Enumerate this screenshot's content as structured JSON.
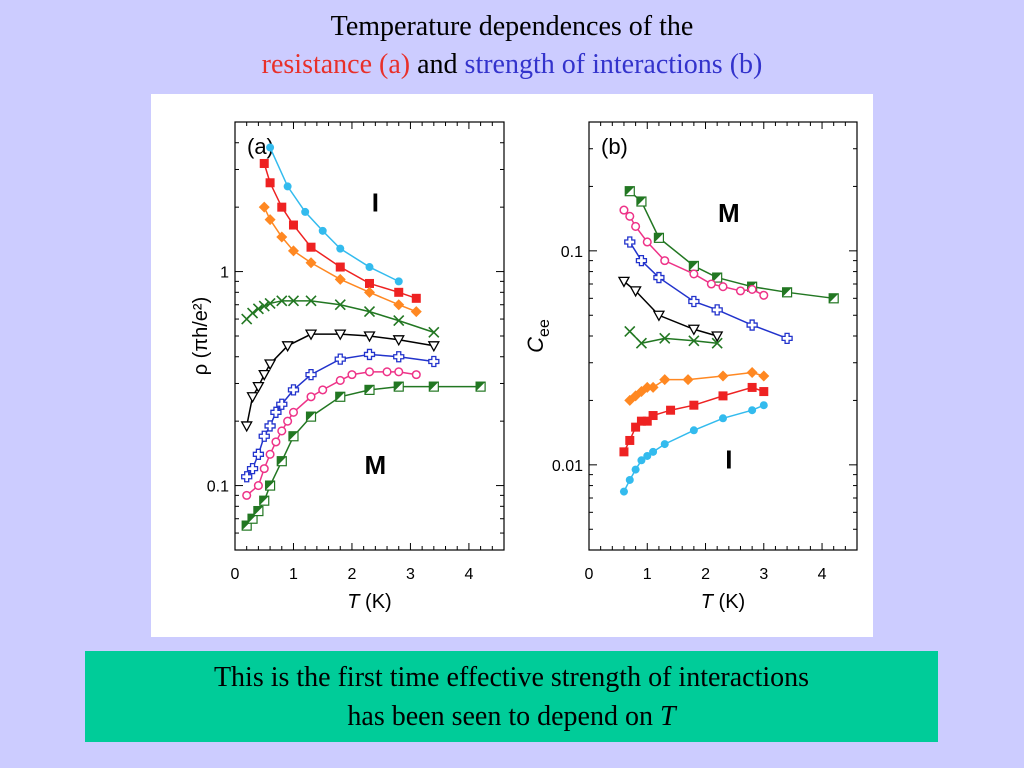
{
  "slide": {
    "title_line1": "Temperature dependences of the",
    "title_red": "resistance (a)",
    "title_and": " and ",
    "title_blue": "strength of interactions (b)",
    "note_line1": "This is the first time effective strength of interactions",
    "note_line2_prefix": "has been seen to depend on ",
    "note_line2_var": "T"
  },
  "chart_data": [
    {
      "type": "scatter",
      "panel_label": "(a)",
      "xlabel_var": "T",
      "xlabel_unit": " (K)",
      "ylabel": "ρ (πh/e²)",
      "ylim": [
        0.05,
        5
      ],
      "yscale": "log",
      "xlim": [
        0,
        4.6
      ],
      "xticks": [
        0,
        1,
        2,
        3,
        4
      ],
      "yticks": [
        0.1,
        1
      ],
      "ytick_labels": [
        "0.1",
        "1"
      ],
      "region_labels": [
        {
          "text": "I",
          "x": 2.4,
          "y": 2.1
        },
        {
          "text": "M",
          "x": 2.4,
          "y": 0.125
        }
      ],
      "series": [
        {
          "color": "#33bbee",
          "marker": "circle",
          "x": [
            0.6,
            0.9,
            1.2,
            1.5,
            1.8,
            2.3,
            2.8
          ],
          "y": [
            3.8,
            2.5,
            1.9,
            1.55,
            1.28,
            1.05,
            0.9
          ]
        },
        {
          "color": "#ee2222",
          "marker": "square",
          "x": [
            0.5,
            0.6,
            0.8,
            1.0,
            1.3,
            1.8,
            2.3,
            2.8,
            3.1
          ],
          "y": [
            3.2,
            2.6,
            2.0,
            1.65,
            1.3,
            1.05,
            0.88,
            0.8,
            0.75
          ]
        },
        {
          "color": "#ff8822",
          "marker": "diamond",
          "x": [
            0.5,
            0.6,
            0.8,
            1.0,
            1.3,
            1.8,
            2.3,
            2.8,
            3.1
          ],
          "y": [
            2.0,
            1.75,
            1.45,
            1.25,
            1.1,
            0.92,
            0.8,
            0.7,
            0.65
          ]
        },
        {
          "color": "#227722",
          "marker": "x",
          "x": [
            0.2,
            0.3,
            0.4,
            0.5,
            0.6,
            0.8,
            1.0,
            1.3,
            1.8,
            2.3,
            2.8,
            3.4
          ],
          "y": [
            0.6,
            0.64,
            0.67,
            0.69,
            0.71,
            0.73,
            0.73,
            0.73,
            0.7,
            0.65,
            0.59,
            0.52
          ]
        },
        {
          "color": "#000000",
          "marker": "triangle-down",
          "x": [
            0.2,
            0.3,
            0.4,
            0.5,
            0.6,
            0.9,
            1.3,
            1.8,
            2.3,
            2.8,
            3.4
          ],
          "y": [
            0.19,
            0.26,
            0.29,
            0.33,
            0.37,
            0.45,
            0.51,
            0.51,
            0.5,
            0.48,
            0.45
          ]
        },
        {
          "color": "#2233cc",
          "marker": "plus",
          "x": [
            0.2,
            0.3,
            0.4,
            0.5,
            0.6,
            0.7,
            0.8,
            1.0,
            1.3,
            1.8,
            2.3,
            2.8,
            3.4
          ],
          "y": [
            0.11,
            0.12,
            0.14,
            0.17,
            0.19,
            0.22,
            0.24,
            0.28,
            0.33,
            0.39,
            0.41,
            0.4,
            0.38
          ]
        },
        {
          "color": "#ee3388",
          "marker": "circle-open",
          "x": [
            0.2,
            0.4,
            0.5,
            0.6,
            0.7,
            0.8,
            0.9,
            1.0,
            1.3,
            1.5,
            1.8,
            2.0,
            2.3,
            2.6,
            2.8,
            3.1
          ],
          "y": [
            0.09,
            0.1,
            0.12,
            0.14,
            0.16,
            0.18,
            0.2,
            0.22,
            0.26,
            0.28,
            0.31,
            0.33,
            0.34,
            0.34,
            0.34,
            0.33
          ]
        },
        {
          "color": "#227722",
          "marker": "square-half",
          "x": [
            0.2,
            0.3,
            0.4,
            0.5,
            0.6,
            0.8,
            1.0,
            1.3,
            1.8,
            2.3,
            2.8,
            3.4,
            4.2
          ],
          "y": [
            0.065,
            0.07,
            0.076,
            0.085,
            0.1,
            0.13,
            0.17,
            0.21,
            0.26,
            0.28,
            0.29,
            0.29,
            0.29
          ]
        }
      ]
    },
    {
      "type": "scatter",
      "panel_label": "(b)",
      "xlabel_var": "T",
      "xlabel_unit": " (K)",
      "ylabel": "Cee",
      "ylabel_main": "C",
      "ylabel_sub": "ee",
      "ylim": [
        0.004,
        0.4
      ],
      "yscale": "log",
      "xlim": [
        0,
        4.6
      ],
      "xticks": [
        0,
        1,
        2,
        3,
        4
      ],
      "yticks": [
        0.01,
        0.1
      ],
      "ytick_labels": [
        "0.01",
        "0.1"
      ],
      "region_labels": [
        {
          "text": "M",
          "x": 2.4,
          "y": 0.15
        },
        {
          "text": "I",
          "x": 2.4,
          "y": 0.0106
        }
      ],
      "series": [
        {
          "color": "#227722",
          "marker": "square-half",
          "x": [
            0.7,
            0.9,
            1.2,
            1.8,
            2.2,
            2.8,
            3.4,
            4.2
          ],
          "y": [
            0.19,
            0.17,
            0.115,
            0.085,
            0.075,
            0.068,
            0.064,
            0.06
          ]
        },
        {
          "color": "#ee3388",
          "marker": "circle-open",
          "x": [
            0.6,
            0.7,
            0.8,
            1.0,
            1.3,
            1.8,
            2.1,
            2.3,
            2.6,
            2.8,
            3.0
          ],
          "y": [
            0.155,
            0.145,
            0.13,
            0.11,
            0.09,
            0.078,
            0.07,
            0.068,
            0.065,
            0.066,
            0.062
          ]
        },
        {
          "color": "#2233cc",
          "marker": "plus",
          "x": [
            0.7,
            0.9,
            1.2,
            1.8,
            2.2,
            2.8,
            3.4
          ],
          "y": [
            0.11,
            0.09,
            0.075,
            0.058,
            0.053,
            0.045,
            0.039
          ]
        },
        {
          "color": "#000000",
          "marker": "triangle-down",
          "x": [
            0.6,
            0.8,
            1.2,
            1.8,
            2.2
          ],
          "y": [
            0.072,
            0.065,
            0.05,
            0.043,
            0.04
          ]
        },
        {
          "color": "#227722",
          "marker": "x",
          "x": [
            0.7,
            0.9,
            1.3,
            1.8,
            2.2
          ],
          "y": [
            0.042,
            0.037,
            0.039,
            0.038,
            0.037
          ]
        },
        {
          "color": "#ff8822",
          "marker": "diamond",
          "x": [
            0.7,
            0.8,
            0.9,
            1.0,
            1.1,
            1.3,
            1.7,
            2.3,
            2.8,
            3.0
          ],
          "y": [
            0.02,
            0.021,
            0.022,
            0.023,
            0.023,
            0.025,
            0.025,
            0.026,
            0.027,
            0.026
          ]
        },
        {
          "color": "#ee2222",
          "marker": "square",
          "x": [
            0.6,
            0.7,
            0.8,
            0.9,
            1.0,
            1.1,
            1.4,
            1.8,
            2.3,
            2.8,
            3.0
          ],
          "y": [
            0.0115,
            0.013,
            0.015,
            0.016,
            0.016,
            0.017,
            0.018,
            0.019,
            0.021,
            0.023,
            0.022
          ]
        },
        {
          "color": "#33bbee",
          "marker": "circle",
          "x": [
            0.6,
            0.7,
            0.8,
            0.9,
            1.0,
            1.1,
            1.3,
            1.8,
            2.3,
            2.8,
            3.0
          ],
          "y": [
            0.0075,
            0.0085,
            0.0095,
            0.0105,
            0.011,
            0.0115,
            0.0125,
            0.0145,
            0.0165,
            0.018,
            0.019
          ]
        }
      ]
    }
  ]
}
